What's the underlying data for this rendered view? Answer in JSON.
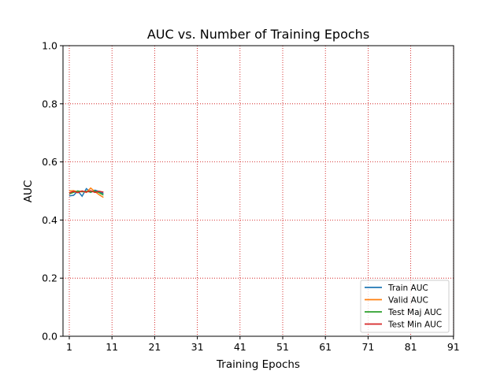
{
  "chart_data": {
    "type": "line",
    "title": "AUC vs. Number of Training Epochs",
    "xlabel": "Training Epochs",
    "ylabel": "AUC",
    "xlim": [
      0,
      91
    ],
    "ylim": [
      0.0,
      1.0
    ],
    "xticks": [
      "1",
      "11",
      "21",
      "31",
      "41",
      "51",
      "61",
      "71",
      "81",
      "91"
    ],
    "yticks": [
      "0.0",
      "0.2",
      "0.4",
      "0.6",
      "0.8",
      "1.0"
    ],
    "grid": true,
    "grid_color": "#cc0000",
    "legend_position": "lower-right",
    "x": [
      0,
      1,
      2,
      3,
      4,
      5,
      6,
      7,
      8
    ],
    "series": [
      {
        "name": "Train AUC",
        "color": "#1f77b4",
        "values": [
          0.483,
          0.485,
          0.5,
          0.482,
          0.508,
          0.495,
          0.503,
          0.498,
          0.491
        ]
      },
      {
        "name": "Valid AUC",
        "color": "#ff7f0e",
        "values": [
          0.5,
          0.501,
          0.497,
          0.5,
          0.495,
          0.51,
          0.498,
          0.487,
          0.478
        ]
      },
      {
        "name": "Test Maj AUC",
        "color": "#2ca02c",
        "values": [
          0.49,
          0.495,
          0.5,
          0.497,
          0.499,
          0.496,
          0.5,
          0.494,
          0.486
        ]
      },
      {
        "name": "Test Min AUC",
        "color": "#d62728",
        "values": [
          0.493,
          0.499,
          0.494,
          0.5,
          0.496,
          0.501,
          0.495,
          0.499,
          0.496
        ]
      }
    ]
  }
}
